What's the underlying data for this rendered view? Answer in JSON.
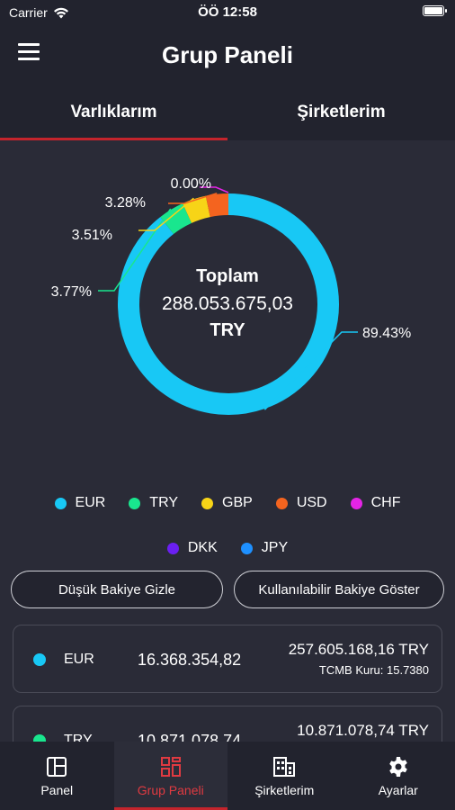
{
  "status_bar": {
    "carrier": "Carrier",
    "time": "ÖÖ 12:58"
  },
  "header": {
    "title": "Grup Paneli"
  },
  "tabs": [
    {
      "label": "Varlıklarım",
      "active": true
    },
    {
      "label": "Şirketlerim",
      "active": false
    }
  ],
  "chart_data": {
    "type": "pie",
    "subtype": "donut",
    "center": {
      "title": "Toplam",
      "amount": "288.053.675,03",
      "currency": "TRY"
    },
    "slices": [
      {
        "name": "EUR",
        "value": 89.43,
        "label": "89.43%",
        "color": "#18c8f5"
      },
      {
        "name": "TRY",
        "value": 3.77,
        "label": "3.77%",
        "color": "#19e68e"
      },
      {
        "name": "GBP",
        "value": 3.51,
        "label": "3.51%",
        "color": "#f7d417"
      },
      {
        "name": "USD",
        "value": 3.28,
        "label": "3.28%",
        "color": "#f4641f"
      },
      {
        "name": "CHF",
        "value": 0.0,
        "label": "0.00%",
        "color": "#e524e6"
      }
    ],
    "legend": [
      {
        "name": "EUR",
        "color": "#18c8f5"
      },
      {
        "name": "TRY",
        "color": "#19e68e"
      },
      {
        "name": "GBP",
        "color": "#f7d417"
      },
      {
        "name": "USD",
        "color": "#f4641f"
      },
      {
        "name": "CHF",
        "color": "#e524e6"
      },
      {
        "name": "DKK",
        "color": "#6b1ff2"
      },
      {
        "name": "JPY",
        "color": "#1e90ff"
      }
    ]
  },
  "buttons": {
    "hide_low_balance": "Düşük Bakiye Gizle",
    "show_available_balance": "Kullanılabilir Bakiye Göster"
  },
  "assets": [
    {
      "code": "EUR",
      "amount": "16.368.354,82",
      "try_value": "257.605.168,16 TRY",
      "rate": "TCMB Kuru: 15.7380",
      "color": "#18c8f5"
    },
    {
      "code": "TRY",
      "amount": "10.871.078,74",
      "try_value": "10.871.078,74 TRY",
      "rate": "",
      "color": "#19e68e"
    }
  ],
  "bottom_nav": [
    {
      "label": "Panel",
      "icon": "panel-icon",
      "active": false
    },
    {
      "label": "Grup Paneli",
      "icon": "group-panel-icon",
      "active": true
    },
    {
      "label": "Şirketlerim",
      "icon": "companies-icon",
      "active": false
    },
    {
      "label": "Ayarlar",
      "icon": "gear-icon",
      "active": false
    }
  ]
}
